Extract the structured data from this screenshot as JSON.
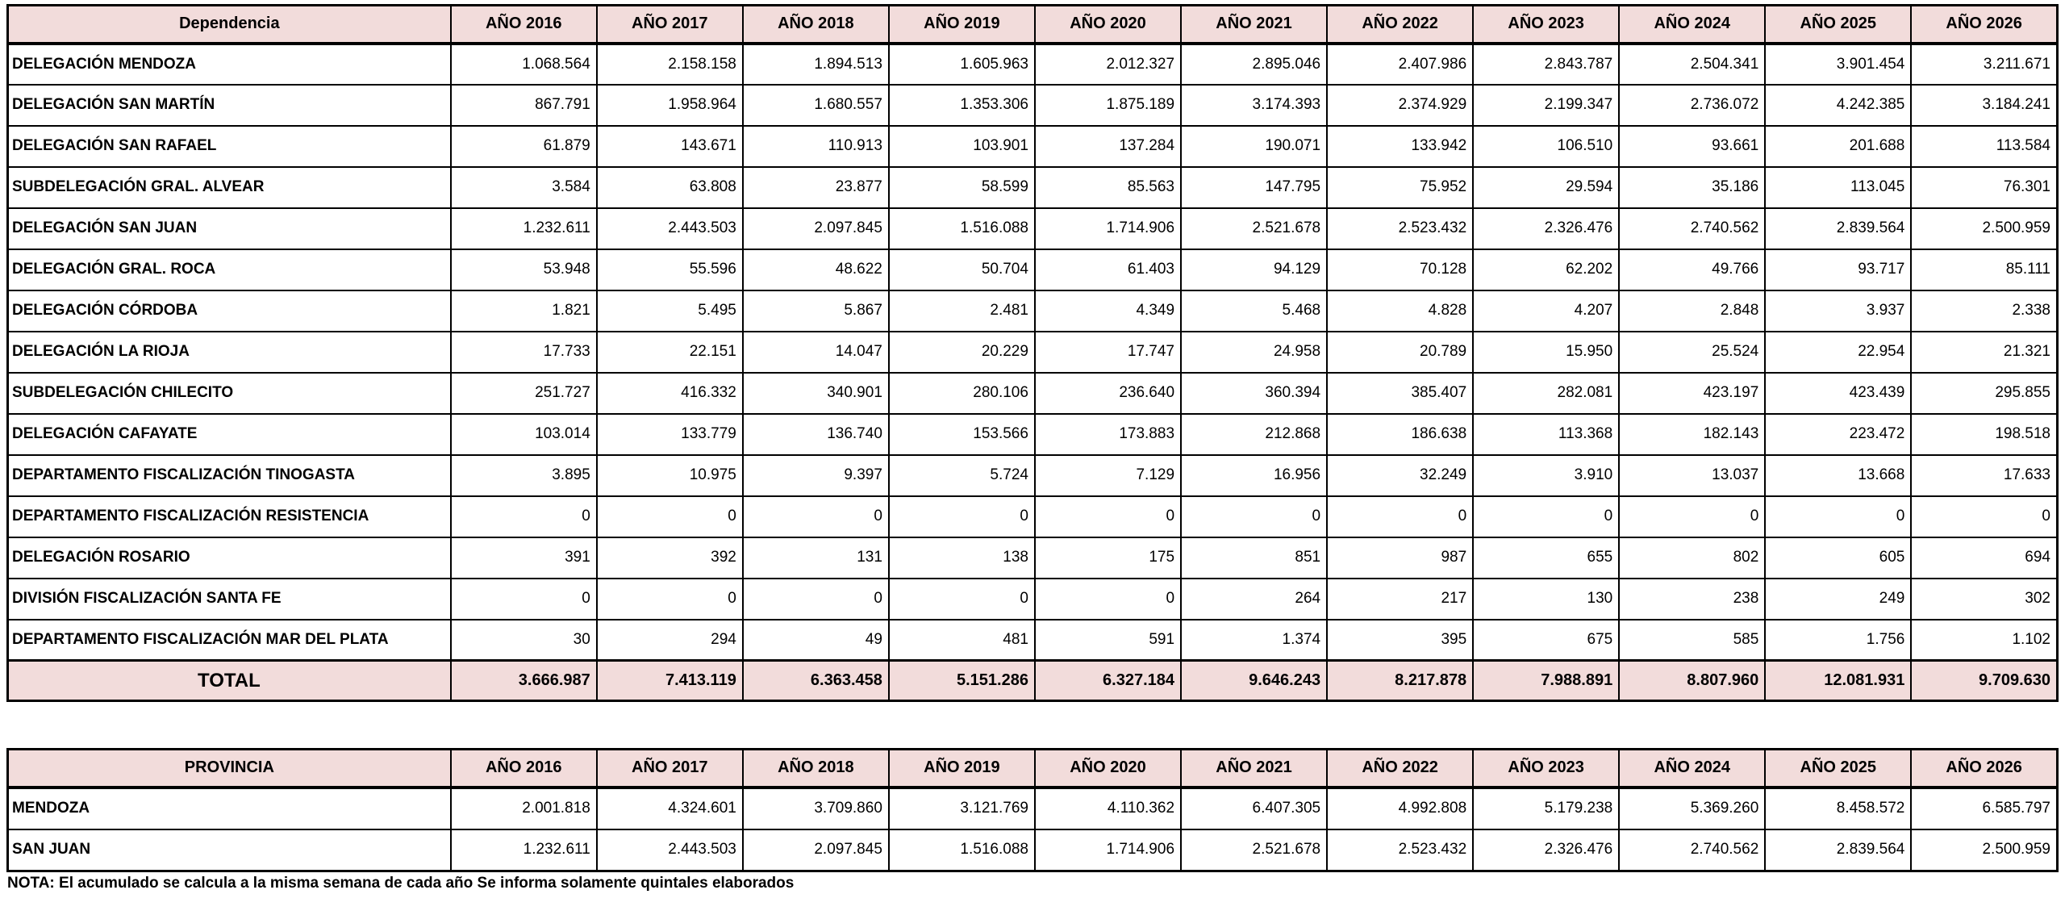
{
  "colors": {
    "header_bg": "#f2dcdb",
    "total_row_bg": "#f2dcdb",
    "border": "#000000",
    "cell_bg": "#ffffff",
    "text": "#000000"
  },
  "table1": {
    "header": [
      "Dependencia",
      "AÑO 2016",
      "AÑO 2017",
      "AÑO 2018",
      "AÑO 2019",
      "AÑO 2020",
      "AÑO 2021",
      "AÑO 2022",
      "AÑO 2023",
      "AÑO 2024",
      "AÑO 2025",
      "AÑO 2026"
    ],
    "rows": [
      {
        "label": "DELEGACIÓN MENDOZA",
        "values": [
          "1.068.564",
          "2.158.158",
          "1.894.513",
          "1.605.963",
          "2.012.327",
          "2.895.046",
          "2.407.986",
          "2.843.787",
          "2.504.341",
          "3.901.454",
          "3.211.671"
        ]
      },
      {
        "label": "DELEGACIÓN SAN MARTÍN",
        "values": [
          "867.791",
          "1.958.964",
          "1.680.557",
          "1.353.306",
          "1.875.189",
          "3.174.393",
          "2.374.929",
          "2.199.347",
          "2.736.072",
          "4.242.385",
          "3.184.241"
        ]
      },
      {
        "label": "DELEGACIÓN SAN RAFAEL",
        "values": [
          "61.879",
          "143.671",
          "110.913",
          "103.901",
          "137.284",
          "190.071",
          "133.942",
          "106.510",
          "93.661",
          "201.688",
          "113.584"
        ]
      },
      {
        "label": "SUBDELEGACIÓN GRAL. ALVEAR",
        "values": [
          "3.584",
          "63.808",
          "23.877",
          "58.599",
          "85.563",
          "147.795",
          "75.952",
          "29.594",
          "35.186",
          "113.045",
          "76.301"
        ]
      },
      {
        "label": "DELEGACIÓN SAN JUAN",
        "values": [
          "1.232.611",
          "2.443.503",
          "2.097.845",
          "1.516.088",
          "1.714.906",
          "2.521.678",
          "2.523.432",
          "2.326.476",
          "2.740.562",
          "2.839.564",
          "2.500.959"
        ]
      },
      {
        "label": "DELEGACIÓN GRAL. ROCA",
        "values": [
          "53.948",
          "55.596",
          "48.622",
          "50.704",
          "61.403",
          "94.129",
          "70.128",
          "62.202",
          "49.766",
          "93.717",
          "85.111"
        ]
      },
      {
        "label": "DELEGACIÓN CÓRDOBA",
        "values": [
          "1.821",
          "5.495",
          "5.867",
          "2.481",
          "4.349",
          "5.468",
          "4.828",
          "4.207",
          "2.848",
          "3.937",
          "2.338"
        ]
      },
      {
        "label": "DELEGACIÓN LA RIOJA",
        "values": [
          "17.733",
          "22.151",
          "14.047",
          "20.229",
          "17.747",
          "24.958",
          "20.789",
          "15.950",
          "25.524",
          "22.954",
          "21.321"
        ]
      },
      {
        "label": "SUBDELEGACIÓN CHILECITO",
        "values": [
          "251.727",
          "416.332",
          "340.901",
          "280.106",
          "236.640",
          "360.394",
          "385.407",
          "282.081",
          "423.197",
          "423.439",
          "295.855"
        ]
      },
      {
        "label": "DELEGACIÓN CAFAYATE",
        "values": [
          "103.014",
          "133.779",
          "136.740",
          "153.566",
          "173.883",
          "212.868",
          "186.638",
          "113.368",
          "182.143",
          "223.472",
          "198.518"
        ]
      },
      {
        "label": "DEPARTAMENTO FISCALIZACIÓN TINOGASTA",
        "values": [
          "3.895",
          "10.975",
          "9.397",
          "5.724",
          "7.129",
          "16.956",
          "32.249",
          "3.910",
          "13.037",
          "13.668",
          "17.633"
        ]
      },
      {
        "label": "DEPARTAMENTO FISCALIZACIÓN RESISTENCIA",
        "values": [
          "0",
          "0",
          "0",
          "0",
          "0",
          "0",
          "0",
          "0",
          "0",
          "0",
          "0"
        ]
      },
      {
        "label": "DELEGACIÓN ROSARIO",
        "values": [
          "391",
          "392",
          "131",
          "138",
          "175",
          "851",
          "987",
          "655",
          "802",
          "605",
          "694"
        ]
      },
      {
        "label": "DIVISIÓN FISCALIZACIÓN SANTA FE",
        "values": [
          "0",
          "0",
          "0",
          "0",
          "0",
          "264",
          "217",
          "130",
          "238",
          "249",
          "302"
        ]
      },
      {
        "label": "DEPARTAMENTO FISCALIZACIÓN MAR DEL PLATA",
        "values": [
          "30",
          "294",
          "49",
          "481",
          "591",
          "1.374",
          "395",
          "675",
          "585",
          "1.756",
          "1.102"
        ]
      }
    ],
    "total": {
      "label": "TOTAL",
      "values": [
        "3.666.987",
        "7.413.119",
        "6.363.458",
        "5.151.286",
        "6.327.184",
        "9.646.243",
        "8.217.878",
        "7.988.891",
        "8.807.960",
        "12.081.931",
        "9.709.630"
      ]
    }
  },
  "table2": {
    "header": [
      "PROVINCIA",
      "AÑO 2016",
      "AÑO 2017",
      "AÑO 2018",
      "AÑO 2019",
      "AÑO 2020",
      "AÑO 2021",
      "AÑO 2022",
      "AÑO 2023",
      "AÑO 2024",
      "AÑO 2025",
      "AÑO 2026"
    ],
    "rows": [
      {
        "label": "MENDOZA",
        "values": [
          "2.001.818",
          "4.324.601",
          "3.709.860",
          "3.121.769",
          "4.110.362",
          "6.407.305",
          "4.992.808",
          "5.179.238",
          "5.369.260",
          "8.458.572",
          "6.585.797"
        ]
      },
      {
        "label": "SAN JUAN",
        "values": [
          "1.232.611",
          "2.443.503",
          "2.097.845",
          "1.516.088",
          "1.714.906",
          "2.521.678",
          "2.523.432",
          "2.326.476",
          "2.740.562",
          "2.839.564",
          "2.500.959"
        ]
      }
    ]
  },
  "note": "NOTA: El acumulado se calcula a la misma semana de cada año Se informa solamente quintales elaborados"
}
